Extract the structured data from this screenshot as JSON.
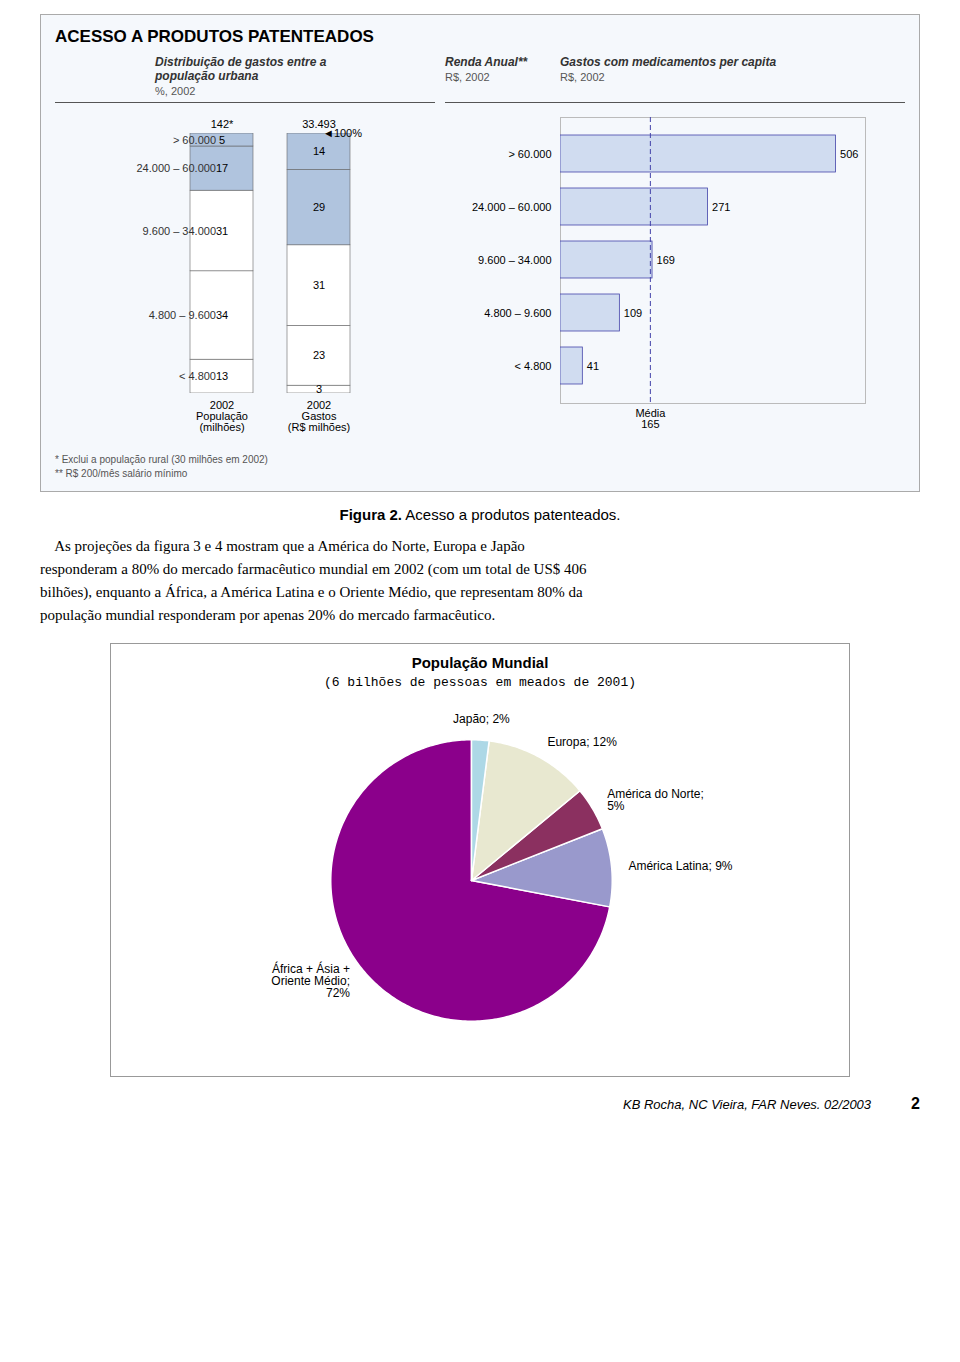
{
  "title": "ACESSO A PRODUTOS PATENTEADOS",
  "chart_data": [
    {
      "type": "bar",
      "stacked": true,
      "title": "Distribuição de gastos entre a\npopulação urbana",
      "subtitle": "%, 2002",
      "categories": [
        "2002\nPopulação\n(milhões)",
        "2002\nGastos\n(R$ milhões)"
      ],
      "series": [
        {
          "name": "> 60.000",
          "color": "#B0C4DE",
          "values": [
            5,
            14
          ]
        },
        {
          "name": "24.000 – 60.000",
          "color": "#B0C4DE",
          "values": [
            17,
            29
          ]
        },
        {
          "name": "9.600 – 34.000",
          "color": "#FFFFFF",
          "values": [
            31,
            31
          ]
        },
        {
          "name": "4.800 – 9.600",
          "color": "#FFFFFF",
          "values": [
            34,
            23
          ]
        },
        {
          "name": "< 4.800",
          "color": "#FFFFFF",
          "values": [
            13,
            3
          ]
        }
      ],
      "total_labels": [
        "142*",
        "33.493"
      ],
      "annotations": [
        {
          "text": "◄100%",
          "y": 100
        }
      ],
      "ylim": [
        0,
        100
      ],
      "data_labels": true,
      "tick_labels": "x"
    },
    {
      "type": "bar",
      "orientation": "horizontal",
      "title": "Gastos com medicamentos per capita",
      "subtitle": "R$, 2002",
      "ylabel": "Renda Anual**",
      "ylabel_note": "R$, 2002",
      "categories": [
        "> 60.000",
        "24.000 – 60.000",
        "9.600 – 34.000",
        "4.800 – 9.600",
        "< 4.800"
      ],
      "values": [
        506,
        271,
        169,
        109,
        41
      ],
      "color": "#D0DCF0",
      "xlim": [
        0,
        560
      ],
      "annotations": [
        {
          "text": "Média",
          "x": 165
        }
      ],
      "data_labels": true,
      "tick_labels": "y"
    },
    {
      "type": "pie",
      "title": "População Mundial",
      "subtitle": "(6 bilhões de pessoas em meados de 2001)",
      "categories": [
        "África + Ásia +\nOriente Médio;\n72%",
        "América Latina; 9%",
        "América do Norte;\n5%",
        "Europa; 12%",
        "Japão; 2%"
      ],
      "values": [
        72,
        9,
        5,
        12,
        2
      ],
      "colors": [
        "#8B008B",
        "#9999CC",
        "#8B3060",
        "#E8E8D0",
        "#ADD8E6"
      ]
    }
  ],
  "notes": [
    "* Exclui a população rural (30 milhões em 2002)",
    "** R$ 200/mês salário mínimo"
  ],
  "caption": {
    "bold": "Figura 2.",
    "text": " Acesso a produtos patenteados."
  },
  "paragraph": [
    "    As projeções da figura 3 e 4 mostram que a América do Norte, Europa e Japão",
    "responderam a 80% do mercado farmacêutico mundial em 2002 (com um total de US$ 406",
    "bilhões), enquanto a África, a América Latina e o Oriente Médio, que representam 80% da",
    "população mundial responderam por apenas 20% do mercado farmacêutico."
  ],
  "footer": "KB Rocha, NC Vieira, FAR Neves. 02/2003",
  "page_number": "2"
}
